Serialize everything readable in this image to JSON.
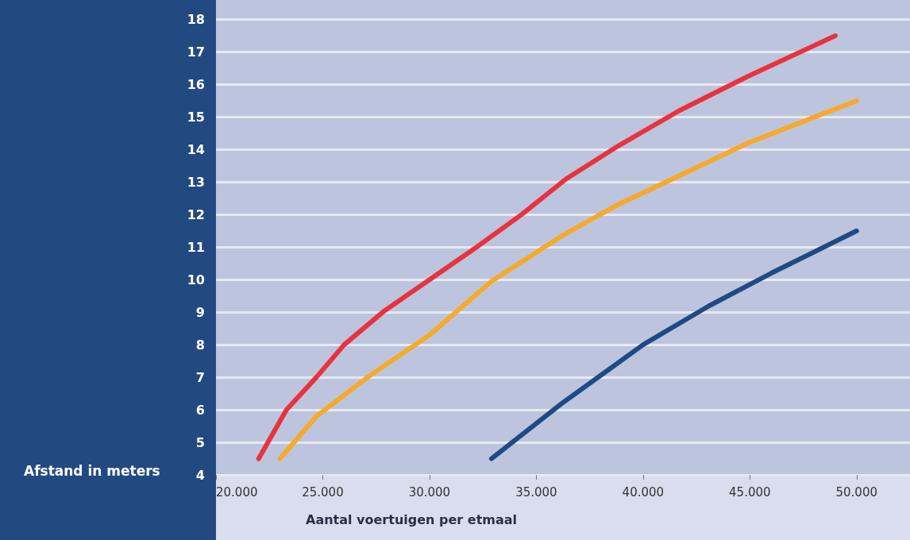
{
  "chart_data": {
    "type": "line",
    "xlabel": "Aantal voertuigen per etmaal",
    "ylabel": "Afstand in meters",
    "series": [
      {
        "color": "#e8333f",
        "x": [
          22000,
          23300,
          24700,
          26000,
          27900,
          30000,
          32200,
          34300,
          36400,
          38800,
          41700,
          44900,
          49000
        ],
        "values": [
          4.5,
          6.0,
          7.0,
          8.0,
          9.05,
          10.0,
          11.0,
          12.0,
          13.1,
          14.1,
          15.2,
          16.25,
          17.5
        ]
      },
      {
        "color": "#f7a929",
        "x": [
          23000,
          24700,
          27100,
          30000,
          32900,
          36200,
          38800,
          41700,
          44900,
          50000
        ],
        "values": [
          4.5,
          5.8,
          7.0,
          8.3,
          9.95,
          11.35,
          12.3,
          13.2,
          14.2,
          15.5
        ]
      },
      {
        "color": "#1f4a84",
        "x": [
          32900,
          36200,
          40000,
          43100,
          46000,
          50000
        ],
        "values": [
          4.5,
          6.2,
          8.0,
          9.2,
          10.2,
          11.5
        ]
      }
    ],
    "xlim": [
      20000,
      52500
    ],
    "xticks": [
      {
        "value": 20000,
        "label": "20.000"
      },
      {
        "value": 25000,
        "label": "25.000"
      },
      {
        "value": 30000,
        "label": "30.000"
      },
      {
        "value": 35000,
        "label": "35.000"
      },
      {
        "value": 40000,
        "label": "40.000"
      },
      {
        "value": 45000,
        "label": "45.000"
      },
      {
        "value": 50000,
        "label": "50.000"
      }
    ],
    "ylim": [
      4,
      18.6
    ],
    "yticks": [
      4,
      5,
      6,
      7,
      8,
      9,
      10,
      11,
      12,
      13,
      14,
      15,
      16,
      17,
      18
    ],
    "grid": "y",
    "marker": "none",
    "line_style": "solid"
  }
}
